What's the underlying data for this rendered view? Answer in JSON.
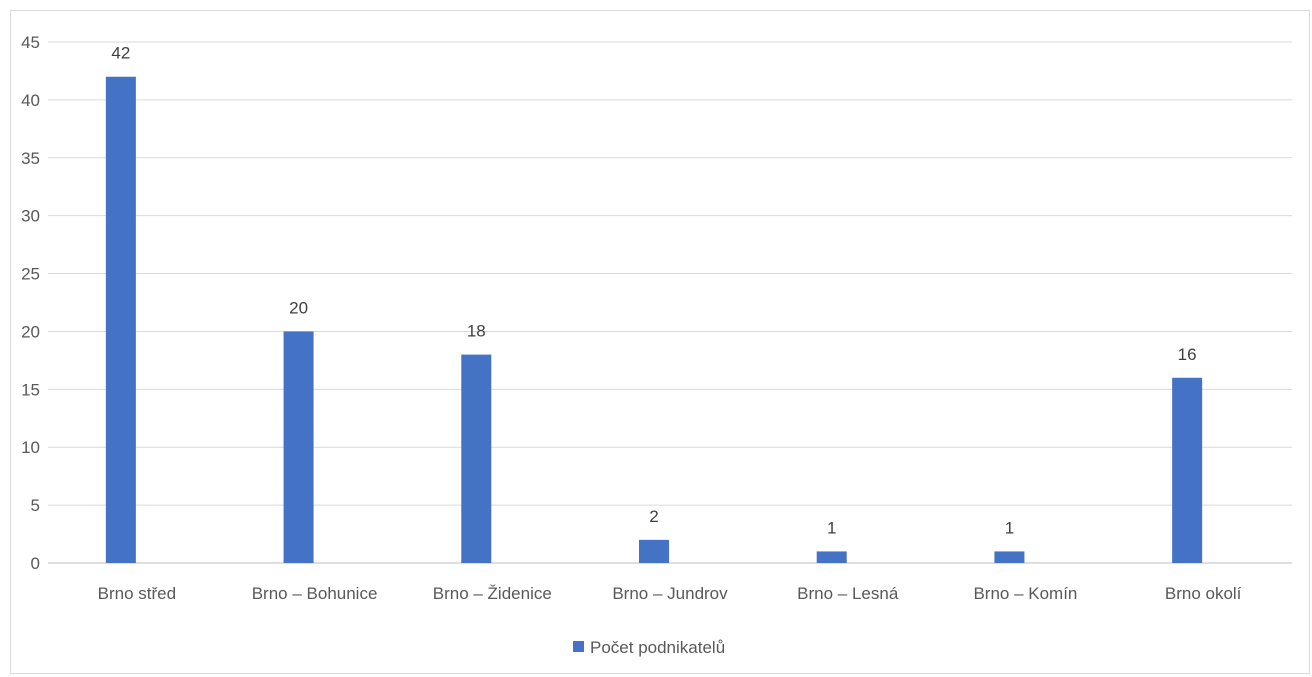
{
  "chart_data": {
    "type": "bar",
    "categories": [
      "Brno střed",
      "Brno – Bohunice",
      "Brno – Židenice",
      "Brno – Jundrov",
      "Brno – Lesná",
      "Brno – Komín",
      "Brno okolí"
    ],
    "series": [
      {
        "name": "Počet podnikatelů",
        "values": [
          42,
          20,
          18,
          2,
          1,
          1,
          16
        ],
        "color": "#4472c4"
      }
    ],
    "yticks": [
      "0",
      "5",
      "10",
      "15",
      "20",
      "25",
      "30",
      "35",
      "40",
      "45"
    ],
    "ylim": [
      0,
      45
    ],
    "grid": true,
    "legend": "bottom",
    "data_labels": true,
    "title": "",
    "xlabel": "",
    "ylabel": ""
  }
}
